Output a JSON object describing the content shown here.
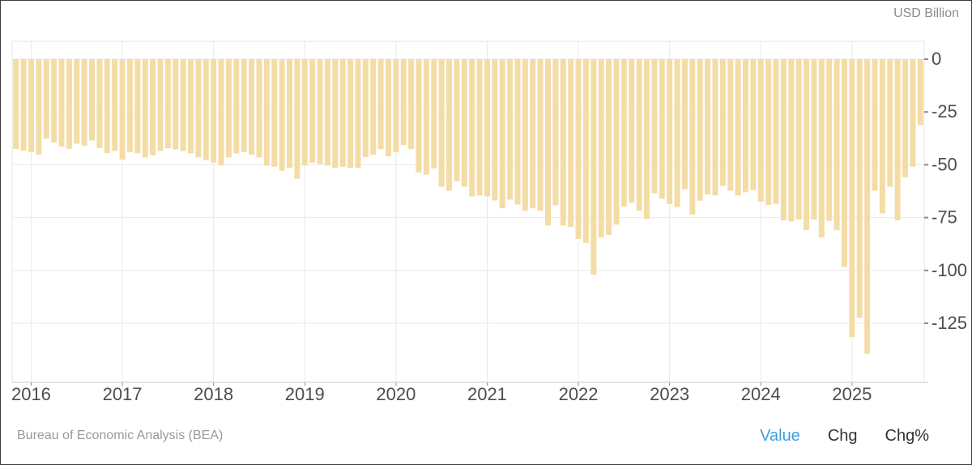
{
  "window": {
    "unit_label": "USD Billion"
  },
  "footer": {
    "source": "Bureau of Economic Analysis (BEA)",
    "tabs": [
      {
        "label": "Value",
        "active": true
      },
      {
        "label": "Chg",
        "active": false
      },
      {
        "label": "Chg%",
        "active": false
      }
    ]
  },
  "colors": {
    "bar": "#f4dca6",
    "grid": "#e9e9e9",
    "axis_line": "#c9c9c9",
    "plot_border": "#e5e5e5",
    "tick": "#8c8c8c",
    "axis_text": "#4d4d4d",
    "unit_text": "#8c8c8c",
    "source_text": "#9a9a9a",
    "tab_active": "#3d9fe0",
    "tab_text": "#333333",
    "frame_border": "#3c3c3c",
    "background": "#ffffff"
  },
  "chart_data": {
    "type": "bar",
    "title": "",
    "ylabel": "USD Billion",
    "xlabel": "",
    "unit": "USD Billion",
    "source": "Bureau of Economic Analysis (BEA)",
    "frequency": "monthly",
    "start_month": "2015-11",
    "end_month": "2025-10",
    "grid": true,
    "legend": "none",
    "x_tick_labels": [
      "2016",
      "2017",
      "2018",
      "2019",
      "2020",
      "2021",
      "2022",
      "2023",
      "2024",
      "2025"
    ],
    "y_ticks": [
      0,
      -25,
      -50,
      -75,
      -100,
      -125
    ],
    "y_tick_labels": [
      "0",
      "-25",
      "-50",
      "-75",
      "-100",
      "-125"
    ],
    "ylim": [
      -153,
      8
    ],
    "values": [
      -42.5,
      -43.4,
      -44.0,
      -45.2,
      -37.6,
      -39.5,
      -41.4,
      -42.5,
      -40.0,
      -41.0,
      -38.5,
      -42.0,
      -44.5,
      -43.5,
      -47.5,
      -44.0,
      -44.5,
      -46.5,
      -45.5,
      -43.5,
      -42.2,
      -42.8,
      -43.5,
      -44.6,
      -46.5,
      -47.8,
      -49.0,
      -50.3,
      -46.5,
      -44.6,
      -44.0,
      -45.2,
      -46.5,
      -50.3,
      -50.9,
      -52.8,
      -51.5,
      -56.6,
      -50.3,
      -49.0,
      -49.6,
      -50.3,
      -51.5,
      -50.9,
      -51.5,
      -51.5,
      -46.4,
      -45.2,
      -42.6,
      -46.0,
      -44.1,
      -40.7,
      -42.6,
      -53.6,
      -54.7,
      -51.7,
      -60.4,
      -62.3,
      -57.8,
      -60.4,
      -65.0,
      -64.6,
      -65.0,
      -66.9,
      -70.6,
      -66.5,
      -68.8,
      -71.8,
      -70.6,
      -71.8,
      -78.7,
      -69.2,
      -78.7,
      -79.4,
      -85.1,
      -87.0,
      -102.0,
      -84.4,
      -83.2,
      -78.3,
      -69.9,
      -68.0,
      -71.8,
      -75.6,
      -63.5,
      -66.1,
      -68.5,
      -70.0,
      -61.6,
      -73.5,
      -67.0,
      -64.0,
      -64.5,
      -60.0,
      -62.3,
      -64.5,
      -63.0,
      -62.0,
      -67.5,
      -69.0,
      -68.5,
      -76.3,
      -76.8,
      -75.9,
      -80.9,
      -76.0,
      -84.4,
      -76.5,
      -81.0,
      -98.4,
      -131.5,
      -122.4,
      -139.5,
      -62.3,
      -73.0,
      -60.4,
      -76.3,
      -55.9,
      -50.9,
      -31.2
    ]
  }
}
